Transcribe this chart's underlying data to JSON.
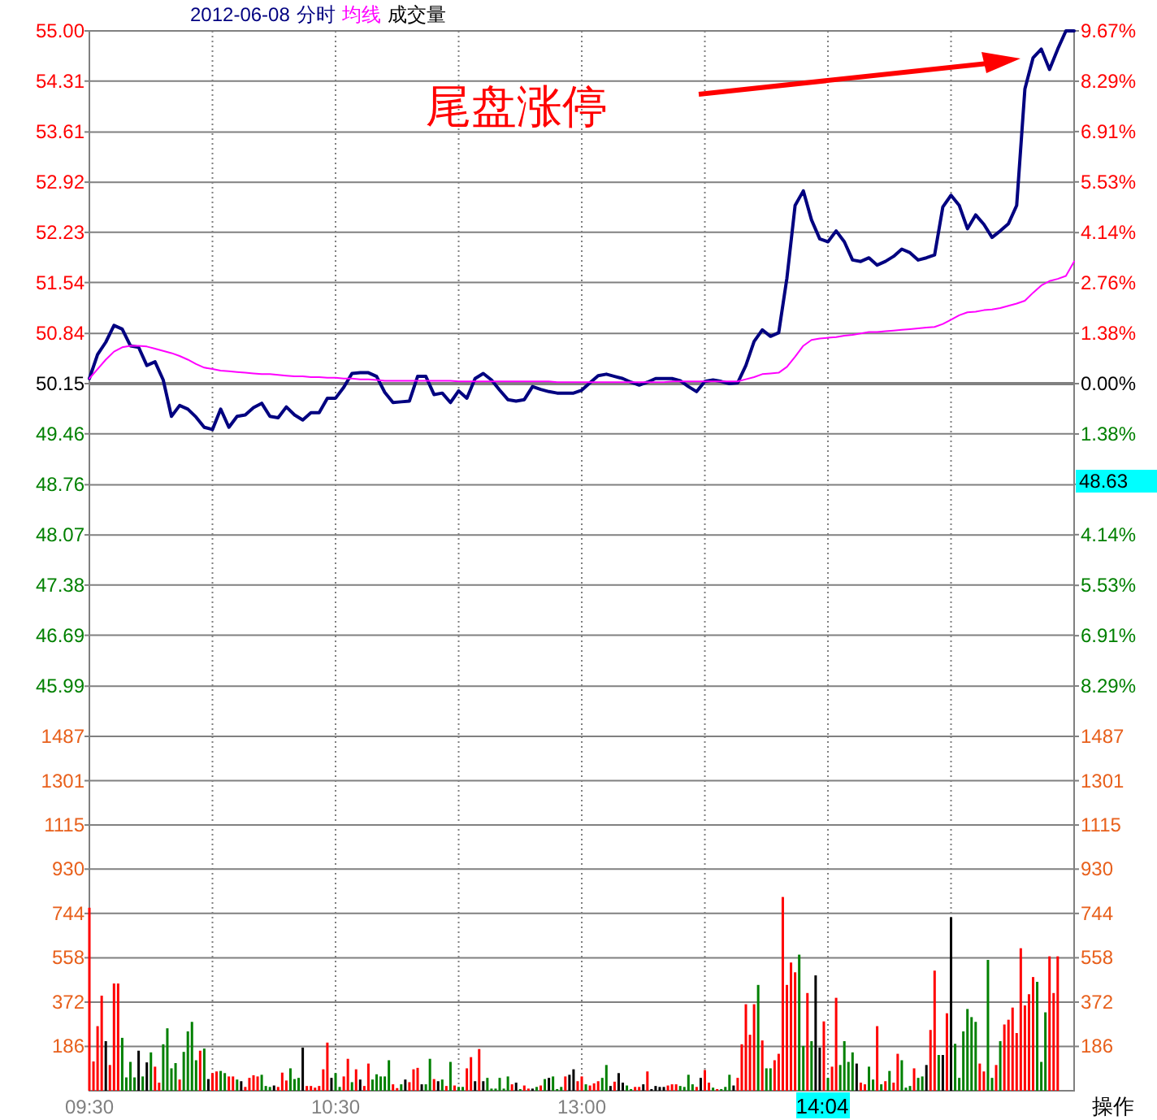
{
  "chart_data": [
    {
      "type": "line",
      "subtitle": "2012-06-08",
      "grid": true,
      "tick_labels": "y",
      "categories": [
        null,
        null,
        null,
        null,
        null,
        null,
        null,
        null,
        null,
        null,
        null,
        null,
        null,
        null,
        null,
        null,
        null,
        null,
        null,
        null,
        null,
        null,
        null,
        null,
        null,
        null,
        null,
        null,
        null,
        null,
        null,
        null,
        null,
        null,
        null,
        null,
        null,
        null,
        null,
        null,
        null,
        null,
        null,
        null,
        null,
        null,
        null,
        null,
        null,
        null,
        null,
        null,
        null,
        null,
        null,
        null,
        null,
        null,
        null,
        null,
        null,
        null,
        null,
        null,
        null,
        null,
        null,
        null,
        null,
        null,
        null,
        null,
        null,
        null,
        null,
        null,
        null,
        null,
        null,
        null,
        null,
        null,
        null,
        null,
        null,
        null,
        null,
        null,
        null,
        null,
        null,
        null,
        null,
        null,
        null,
        null,
        null,
        null,
        null,
        null,
        null,
        null,
        null,
        null,
        null,
        null,
        null,
        null,
        null,
        null,
        null,
        null,
        null,
        null,
        null,
        null,
        null,
        null,
        null,
        null,
        null
      ],
      "ylim": [
        45.3,
        55.0
      ],
      "yticks": [
        45.99,
        46.69,
        47.38,
        48.07,
        48.76,
        49.46,
        50.15,
        50.84,
        51.54,
        52.23,
        52.92,
        53.61,
        54.31,
        {
          "value": 55.0,
          "label": "55.00"
        }
      ],
      "y2lim": [
        -9.67,
        9.67
      ],
      "y2ticks": [
        {
          "value": 9.67,
          "label": "9.67%"
        },
        {
          "value": 8.29,
          "label": "8.29%"
        },
        {
          "value": 6.91,
          "label": "6.91%"
        },
        {
          "value": 5.53,
          "label": "5.53%"
        },
        {
          "value": 4.14,
          "label": "4.14%"
        },
        {
          "value": 2.76,
          "label": "2.76%"
        },
        {
          "value": 1.38,
          "label": "1.38%"
        },
        {
          "value": 0,
          "label": "0.00%"
        },
        {
          "value": -1.38,
          "label": "1.38%"
        },
        {
          "value": -2.76,
          "label": null
        },
        {
          "value": -4.14,
          "label": "4.14%"
        },
        {
          "value": -5.53,
          "label": "5.53%"
        },
        {
          "value": -6.91,
          "label": "6.91%"
        },
        {
          "value": -8.29,
          "label": "8.29%"
        }
      ],
      "ref_lines": [
        {
          "axis": "y",
          "value": 50.15,
          "color": "#808080"
        }
      ],
      "series": [
        {
          "name": "分时",
          "color": "#000080",
          "values": [
            50.22,
            50.55,
            50.72,
            50.95,
            50.9,
            50.67,
            50.65,
            50.4,
            50.45,
            50.2,
            49.7,
            49.85,
            49.8,
            49.69,
            49.55,
            49.52,
            49.8,
            49.55,
            49.7,
            49.72,
            49.82,
            49.88,
            49.7,
            49.68,
            49.83,
            49.72,
            49.65,
            49.75,
            49.75,
            49.95,
            49.95,
            50.1,
            50.29,
            50.3,
            50.3,
            50.25,
            50.03,
            49.89,
            49.9,
            49.91,
            50.25,
            50.25,
            50.0,
            50.02,
            49.89,
            50.05,
            49.95,
            50.22,
            50.29,
            50.2,
            50.06,
            49.93,
            49.91,
            49.93,
            50.11,
            50.07,
            50.04,
            50.02,
            50.02,
            50.02,
            50.06,
            50.16,
            50.26,
            50.28,
            50.25,
            50.22,
            50.17,
            50.13,
            50.17,
            50.22,
            50.22,
            50.22,
            50.19,
            50.11,
            50.04,
            50.18,
            50.2,
            50.18,
            50.15,
            50.16,
            50.4,
            50.73,
            50.89,
            50.8,
            50.85,
            51.6,
            52.6,
            52.8,
            52.4,
            52.14,
            52.1,
            52.25,
            52.1,
            51.85,
            51.83,
            51.88,
            51.78,
            51.83,
            51.9,
            52.0,
            51.95,
            51.85,
            51.88,
            51.92,
            52.58,
            52.74,
            52.6,
            52.28,
            52.47,
            52.34,
            52.16,
            52.25,
            52.35,
            52.6,
            54.2,
            54.63,
            54.75,
            54.47,
            54.75,
            55.0,
            55.0
          ]
        },
        {
          "name": "均线",
          "color": "#ff00ff",
          "values": [
            50.22,
            50.35,
            50.48,
            50.59,
            50.65,
            50.67,
            50.67,
            50.66,
            50.63,
            50.6,
            50.57,
            50.53,
            50.48,
            50.42,
            50.37,
            50.35,
            50.33,
            50.32,
            50.31,
            50.3,
            50.29,
            50.28,
            50.28,
            50.27,
            50.26,
            50.25,
            50.25,
            50.24,
            50.24,
            50.23,
            50.23,
            50.22,
            50.22,
            50.21,
            50.21,
            50.2,
            50.19,
            50.19,
            50.19,
            50.19,
            50.19,
            50.19,
            50.19,
            50.19,
            50.19,
            50.18,
            50.18,
            50.18,
            50.18,
            50.18,
            50.18,
            50.18,
            50.18,
            50.18,
            50.18,
            50.18,
            50.18,
            50.17,
            50.17,
            50.17,
            50.17,
            50.17,
            50.17,
            50.17,
            50.17,
            50.17,
            50.17,
            50.17,
            50.17,
            50.17,
            50.17,
            50.18,
            50.18,
            50.18,
            50.18,
            50.18,
            50.18,
            50.18,
            50.18,
            50.18,
            50.21,
            50.24,
            50.28,
            50.29,
            50.3,
            50.38,
            50.52,
            50.67,
            50.75,
            50.77,
            50.78,
            50.79,
            50.81,
            50.82,
            50.84,
            50.86,
            50.86,
            50.87,
            50.88,
            50.89,
            50.9,
            50.91,
            50.92,
            50.93,
            50.97,
            51.03,
            51.09,
            51.13,
            51.14,
            51.16,
            51.17,
            51.19,
            51.22,
            51.25,
            51.29,
            51.4,
            51.5,
            51.56,
            51.59,
            51.63,
            51.83
          ]
        }
      ],
      "annotations": [
        "尾盘涨停",
        "48.63"
      ]
    },
    {
      "type": "bar",
      "grid": true,
      "categories": [
        "09:30",
        null,
        null,
        null,
        null,
        null,
        null,
        null,
        null,
        null,
        null,
        null,
        null,
        null,
        null,
        null,
        null,
        null,
        null,
        null,
        null,
        null,
        null,
        null,
        null,
        null,
        null,
        null,
        null,
        null,
        null,
        null,
        null,
        null,
        null,
        null,
        null,
        null,
        null,
        null,
        null,
        null,
        null,
        null,
        null,
        null,
        null,
        null,
        null,
        null,
        null,
        null,
        null,
        null,
        null,
        null,
        null,
        null,
        null,
        null,
        "10:30",
        null,
        null,
        null,
        null,
        null,
        null,
        null,
        null,
        null,
        null,
        null,
        null,
        null,
        null,
        null,
        null,
        null,
        null,
        null,
        null,
        null,
        null,
        null,
        null,
        null,
        null,
        null,
        null,
        null,
        null,
        null,
        null,
        null,
        null,
        null,
        null,
        null,
        null,
        null,
        null,
        null,
        null,
        null,
        null,
        null,
        null,
        null,
        null,
        null,
        null,
        null,
        null,
        null,
        null,
        null,
        null,
        null,
        null,
        null,
        "13:00",
        null,
        null,
        null,
        null,
        null,
        null,
        null,
        null,
        null,
        null,
        null,
        null,
        null,
        null,
        null,
        null,
        null,
        null,
        null,
        null,
        null,
        null,
        null,
        null,
        null,
        null,
        null,
        null,
        null,
        null,
        null,
        null,
        null,
        null,
        null,
        null,
        null,
        null,
        null,
        null,
        null,
        null,
        null,
        null,
        null,
        null,
        null,
        null,
        null,
        null,
        null,
        null,
        null,
        null,
        null,
        null,
        null,
        null,
        null,
        null,
        null,
        null,
        null,
        null,
        null,
        null,
        null,
        null,
        null,
        null,
        null,
        null,
        null,
        null,
        null,
        null,
        null,
        null,
        null,
        null,
        null,
        null,
        null,
        null,
        null,
        null,
        null,
        null,
        null,
        null,
        null,
        null,
        null,
        null,
        null,
        null,
        null,
        null,
        null,
        null,
        null,
        null,
        null,
        null,
        null,
        null,
        null,
        null,
        null,
        null,
        null,
        null,
        null,
        null,
        null,
        null,
        null,
        null,
        null,
        null
      ],
      "ylim": [
        0,
        1487
      ],
      "yticks": [
        186,
        372,
        558,
        744,
        930,
        1115,
        1301,
        1487
      ],
      "y2lim": [
        0,
        1487
      ],
      "y2ticks": [
        186,
        372,
        558,
        744,
        930,
        1115,
        1301,
        1487
      ],
      "series": [
        {
          "name": "成交量",
          "values": [
            768,
            123,
            271,
            399,
            208,
            108,
            450,
            450,
            222,
            56,
            121,
            56,
            168,
            60,
            119,
            161,
            101,
            34,
            195,
            262,
            94,
            116,
            47,
            163,
            249,
            289,
            128,
            168,
            177,
            49,
            74,
            81,
            83,
            74,
            60,
            60,
            47,
            40,
            16,
            54,
            65,
            60,
            67,
            20,
            16,
            22,
            16,
            76,
            43,
            94,
            49,
            54,
            181,
            20,
            20,
            13,
            20,
            90,
            202,
            54,
            74,
            16,
            60,
            134,
            36,
            90,
            47,
            20,
            114,
            47,
            69,
            60,
            60,
            128,
            27,
            11,
            27,
            47,
            36,
            90,
            96,
            27,
            27,
            134,
            49,
            40,
            47,
            20,
            121,
            22,
            16,
            16,
            94,
            141,
            40,
            175,
            40,
            54,
            9,
            9,
            54,
            9,
            60,
            27,
            34,
            7,
            22,
            9,
            9,
            16,
            22,
            49,
            54,
            60,
            7,
            16,
            60,
            67,
            90,
            40,
            60,
            27,
            22,
            31,
            40,
            54,
            108,
            20,
            38,
            74,
            34,
            22,
            7,
            16,
            16,
            27,
            81,
            7,
            20,
            16,
            16,
            22,
            27,
            27,
            20,
            16,
            67,
            27,
            16,
            54,
            87,
            34,
            13,
            7,
            7,
            16,
            67,
            22,
            54,
            195,
            363,
            235,
            363,
            444,
            211,
            94,
            94,
            128,
            155,
            813,
            444,
            538,
            497,
            571,
            188,
            410,
            208,
            484,
            181,
            291,
            54,
            101,
            390,
            108,
            208,
            121,
            161,
            114,
            34,
            27,
            101,
            47,
            271,
            27,
            40,
            83,
            34,
            155,
            128,
            13,
            20,
            94,
            54,
            60,
            108,
            255,
            504,
            150,
            150,
            325,
            728,
            197,
            54,
            249,
            343,
            309,
            289,
            114,
            81,
            549,
            54,
            108,
            208,
            278,
            298,
            349,
            242,
            598,
            358,
            405,
            477,
            457,
            121,
            329,
            564,
            410,
            564,
            null,
            null,
            null,
            null
          ],
          "colors": [
            "#ff0000",
            "#ff0000",
            "#ff0000",
            "#ff0000",
            "#000000",
            "#ff0000",
            "#ff0000",
            "#ff0000",
            "#008000",
            "#008000",
            "#008000",
            "#008000",
            "#000000",
            "#008000",
            "#000000",
            "#008000",
            "#ff0000",
            "#ff0000",
            "#008000",
            "#008000",
            "#008000",
            "#008000",
            "#ff0000",
            "#008000",
            "#008000",
            "#008000",
            "#008000",
            "#ff0000",
            "#008000",
            "#000000",
            "#ff0000",
            "#ff0000",
            "#008000",
            "#008000",
            "#ff0000",
            "#ff0000",
            "#008000",
            "#000000",
            "#ff0000",
            "#ff0000",
            "#ff0000",
            "#ff0000",
            "#008000",
            "#008000",
            "#008000",
            "#000000",
            "#ff0000",
            "#ff0000",
            "#ff0000",
            "#008000",
            "#008000",
            "#008000",
            "#000000",
            "#ff0000",
            "#ff0000",
            "#ff0000",
            "#ff0000",
            "#ff0000",
            "#ff0000",
            "#000000",
            "#008000",
            "#008000",
            "#ff0000",
            "#ff0000",
            "#008000",
            "#ff0000",
            "#000000",
            "#ff0000",
            "#ff0000",
            "#008000",
            "#008000",
            "#008000",
            "#008000",
            "#008000",
            "#ff0000",
            "#ff0000",
            "#008000",
            "#000000",
            "#ff0000",
            "#ff0000",
            "#ff0000",
            "#000000",
            "#008000",
            "#008000",
            "#ff0000",
            "#000000",
            "#008000",
            "#ff0000",
            "#008000",
            "#ff0000",
            "#008000",
            "#008000",
            "#ff0000",
            "#ff0000",
            "#000000",
            "#ff0000",
            "#000000",
            "#008000",
            "#008000",
            "#008000",
            "#008000",
            "#008000",
            "#008000",
            "#ff0000",
            "#000000",
            "#008000",
            "#ff0000",
            "#ff0000",
            "#000000",
            "#008000",
            "#ff0000",
            "#008000",
            "#000000",
            "#008000",
            "#008000",
            "#008000",
            "#ff0000",
            "#000000",
            "#000000",
            "#ff0000",
            "#ff0000",
            "#008000",
            "#ff0000",
            "#ff0000",
            "#ff0000",
            "#008000",
            "#008000",
            "#000000",
            "#ff0000",
            "#000000",
            "#000000",
            "#008000",
            "#008000",
            "#ff0000",
            "#ff0000",
            "#000000",
            "#ff0000",
            "#000000",
            "#000000",
            "#000000",
            "#000000",
            "#ff0000",
            "#ff0000",
            "#ff0000",
            "#008000",
            "#008000",
            "#008000",
            "#008000",
            "#ff0000",
            "#000000",
            "#ff0000",
            "#ff0000",
            "#008000",
            "#ff0000",
            "#008000",
            "#008000",
            "#008000",
            "#000000",
            "#ff0000",
            "#ff0000",
            "#ff0000",
            "#ff0000",
            "#ff0000",
            "#008000",
            "#ff0000",
            "#008000",
            "#008000",
            "#ff0000",
            "#ff0000",
            "#ff0000",
            "#ff0000",
            "#ff0000",
            "#ff0000",
            "#008000",
            "#008000",
            "#ff0000",
            "#008000",
            "#000000",
            "#000000",
            "#ff0000",
            "#008000",
            "#ff0000",
            "#ff0000",
            "#008000",
            "#008000",
            "#008000",
            "#008000",
            "#000000",
            "#ff0000",
            "#ff0000",
            "#008000",
            "#008000",
            "#ff0000",
            "#008000",
            "#ff0000",
            "#008000",
            "#ff0000",
            "#ff0000",
            "#008000",
            "#008000",
            "#008000",
            "#ff0000",
            "#008000",
            "#008000",
            "#000000",
            "#ff0000",
            "#ff0000",
            "#008000",
            "#000000",
            "#ff0000",
            "#000000",
            "#008000",
            "#008000",
            "#008000",
            "#008000",
            "#008000",
            "#008000",
            "#ff0000",
            "#ff0000",
            "#008000",
            "#008000",
            "#ff0000",
            "#008000",
            "#ff0000",
            "#ff0000",
            "#ff0000",
            "#ff0000",
            "#ff0000",
            "#ff0000",
            "#ff0000",
            "#ff0000",
            "#008000",
            "#008000",
            "#008000",
            "#ff0000",
            "#ff0000",
            "#ff0000",
            null,
            null,
            null,
            null
          ]
        }
      ],
      "annotations": [
        "14:04",
        "操作"
      ]
    }
  ]
}
